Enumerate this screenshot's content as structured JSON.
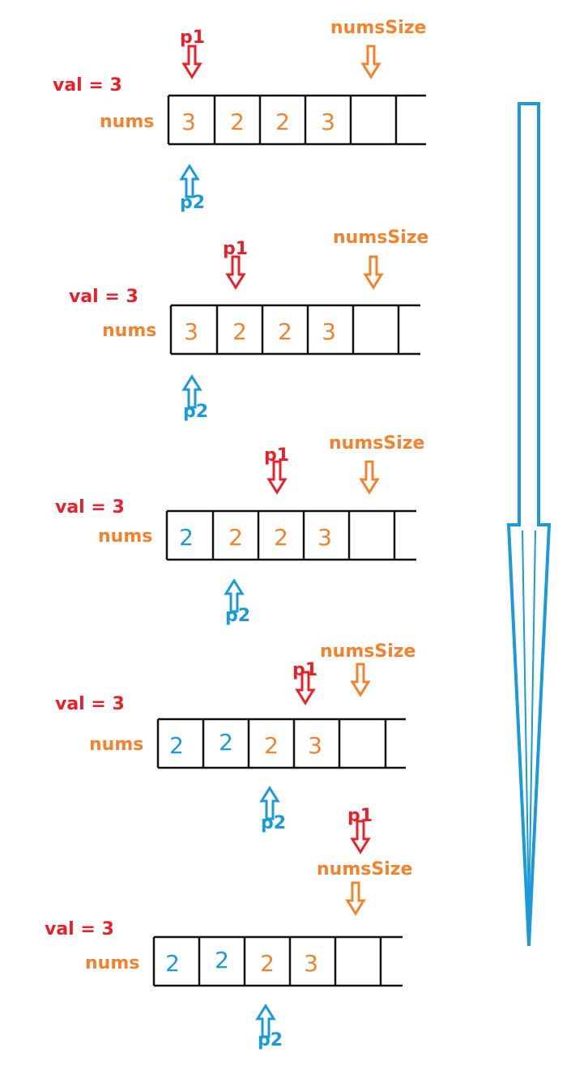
{
  "colors": {
    "red": "#e8202a",
    "orange": "#f2832e",
    "blue": "#1a9ad6",
    "black": "#111111"
  },
  "steps": [
    {
      "val_label": "val = 3",
      "nums_label": "nums",
      "p1_label": "p1",
      "p2_label": "p2",
      "numssize_label": "numsSize",
      "cells": [
        {
          "v": "3",
          "c": "orange"
        },
        {
          "v": "2",
          "c": "orange"
        },
        {
          "v": "2",
          "c": "orange"
        },
        {
          "v": "3",
          "c": "orange"
        },
        {
          "v": "",
          "c": "orange"
        },
        {
          "v": "",
          "c": "orange"
        }
      ]
    },
    {
      "val_label": "val = 3",
      "nums_label": "nums",
      "p1_label": "p1",
      "p2_label": "p2",
      "numssize_label": "numsSize",
      "cells": [
        {
          "v": "3",
          "c": "orange"
        },
        {
          "v": "2",
          "c": "orange"
        },
        {
          "v": "2",
          "c": "orange"
        },
        {
          "v": "3",
          "c": "orange"
        },
        {
          "v": "",
          "c": "orange"
        },
        {
          "v": "",
          "c": "orange"
        }
      ]
    },
    {
      "val_label": "val = 3",
      "nums_label": "nums",
      "p1_label": "p1",
      "p2_label": "p2",
      "numssize_label": "numsSize",
      "cells": [
        {
          "v": "2",
          "c": "blue"
        },
        {
          "v": "2",
          "c": "orange"
        },
        {
          "v": "2",
          "c": "orange"
        },
        {
          "v": "3",
          "c": "orange"
        },
        {
          "v": "",
          "c": "orange"
        },
        {
          "v": "",
          "c": "orange"
        }
      ]
    },
    {
      "val_label": "val = 3",
      "nums_label": "nums",
      "p1_label": "p1",
      "p2_label": "p2",
      "numssize_label": "numsSize",
      "cells": [
        {
          "v": "2",
          "c": "blue"
        },
        {
          "v": "2",
          "c": "blue"
        },
        {
          "v": "2",
          "c": "orange"
        },
        {
          "v": "3",
          "c": "orange"
        },
        {
          "v": "",
          "c": "orange"
        },
        {
          "v": "",
          "c": "orange"
        }
      ]
    },
    {
      "val_label": "val = 3",
      "nums_label": "nums",
      "p1_label": "p1",
      "p2_label": "p2",
      "numssize_label": "numsSize",
      "cells": [
        {
          "v": "2",
          "c": "blue"
        },
        {
          "v": "2",
          "c": "blue"
        },
        {
          "v": "2",
          "c": "orange"
        },
        {
          "v": "3",
          "c": "orange"
        },
        {
          "v": "",
          "c": "orange"
        },
        {
          "v": "",
          "c": "orange"
        }
      ]
    }
  ]
}
